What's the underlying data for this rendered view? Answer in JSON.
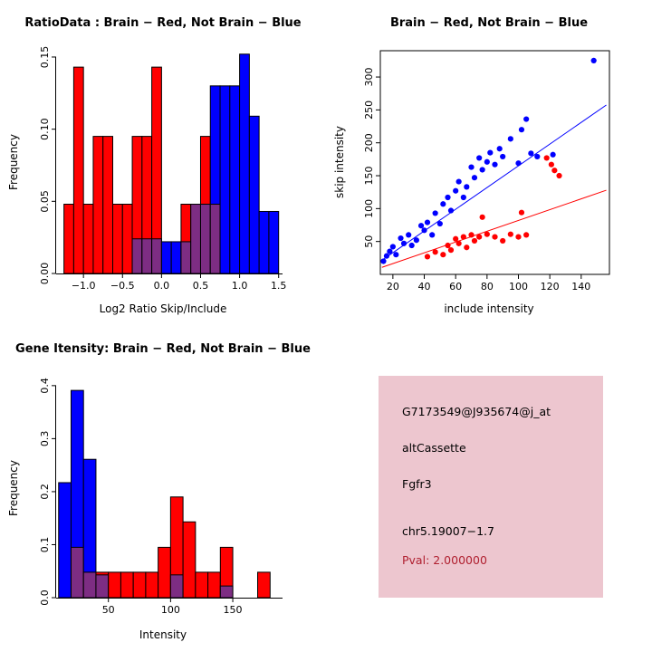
{
  "window": {
    "background": "#ffffff"
  },
  "colors": {
    "red": "#ff0000",
    "blue": "#0000ff",
    "overlap": "#7d2d83",
    "axis": "#000000"
  },
  "panels": {
    "ratio_hist": {
      "title": "RatioData : Brain − Red, Not Brain − Blue",
      "xlabel": "Log2 Ratio Skip/Include",
      "ylabel": "Frequency"
    },
    "scatter": {
      "title": "Brain − Red, Not Brain − Blue",
      "xlabel": "include intensity",
      "ylabel": "skip intensity"
    },
    "gene_hist": {
      "title": "Gene Itensity: Brain − Red, Not Brain − Blue",
      "xlabel": "Intensity",
      "ylabel": "Frequency"
    },
    "info_box": {
      "bg_color": "#edc6cf",
      "probe_id": "G7173549@J935674@j_at",
      "event_type": "altCassette",
      "gene": "Fgfr3",
      "locus": "chr5.19007−1.7",
      "pval": "Pval: 2.000000",
      "pval_color": "#b02030"
    }
  },
  "chart_data": [
    {
      "id": "ratio_hist",
      "type": "bar",
      "title": "RatioData : Brain − Red, Not Brain − Blue",
      "xlabel": "Log2 Ratio Skip/Include",
      "ylabel": "Frequency",
      "xlim": [
        -1.35,
        1.55
      ],
      "ylim": [
        0,
        0.155
      ],
      "xticks": [
        -1.0,
        -0.5,
        0.0,
        0.5,
        1.0,
        1.5
      ],
      "xtick_labels": [
        "−1.0",
        "−0.5",
        "0.0",
        "0.5",
        "1.0",
        "1.5"
      ],
      "yticks": [
        0,
        0.05,
        0.1,
        0.15
      ],
      "ytick_labels": [
        "0.00",
        "0.05",
        "0.10",
        "0.15"
      ],
      "grid": false,
      "legend": "none",
      "bin_start": -1.25,
      "bin_width": 0.125,
      "series": [
        {
          "name": "Brain",
          "color": "red",
          "values": [
            0.048,
            0.143,
            0.048,
            0.095,
            0.095,
            0.048,
            0.048,
            0.095,
            0.095,
            0.143,
            0,
            0,
            0.048,
            0.048,
            0.095,
            0.048,
            0,
            0,
            0,
            0,
            0,
            0
          ]
        },
        {
          "name": "Not Brain",
          "color": "blue",
          "values": [
            0,
            0,
            0,
            0,
            0,
            0,
            0,
            0.024,
            0.024,
            0.024,
            0.022,
            0.022,
            0.022,
            0.048,
            0.048,
            0.13,
            0.13,
            0.13,
            0.152,
            0.109,
            0.043,
            0.043
          ]
        }
      ]
    },
    {
      "id": "scatter",
      "type": "scatter",
      "title": "Brain − Red, Not Brain − Blue",
      "xlabel": "include intensity",
      "ylabel": "skip intensity",
      "xlim": [
        12,
        158
      ],
      "ylim": [
        0,
        340
      ],
      "xticks": [
        20,
        40,
        60,
        80,
        100,
        120,
        140
      ],
      "xtick_labels": [
        "20",
        "40",
        "60",
        "80",
        "100",
        "120",
        "140"
      ],
      "yticks": [
        50,
        100,
        150,
        200,
        250,
        300
      ],
      "ytick_labels": [
        "50",
        "100",
        "150",
        "200",
        "250",
        "300"
      ],
      "grid": false,
      "legend": "none",
      "line_x": [
        13,
        156
      ],
      "series": [
        {
          "name": "Not Brain",
          "color": "blue",
          "line": {
            "slope": 1.65,
            "intercept": 0
          },
          "points": [
            [
              14,
              20
            ],
            [
              16,
              28
            ],
            [
              18,
              35
            ],
            [
              20,
              42
            ],
            [
              22,
              30
            ],
            [
              25,
              55
            ],
            [
              27,
              47
            ],
            [
              30,
              60
            ],
            [
              32,
              44
            ],
            [
              35,
              52
            ],
            [
              38,
              74
            ],
            [
              40,
              67
            ],
            [
              42,
              79
            ],
            [
              45,
              60
            ],
            [
              47,
              93
            ],
            [
              50,
              77
            ],
            [
              52,
              107
            ],
            [
              55,
              117
            ],
            [
              57,
              97
            ],
            [
              60,
              127
            ],
            [
              62,
              141
            ],
            [
              65,
              117
            ],
            [
              67,
              133
            ],
            [
              70,
              163
            ],
            [
              72,
              147
            ],
            [
              75,
              177
            ],
            [
              77,
              159
            ],
            [
              80,
              171
            ],
            [
              82,
              185
            ],
            [
              85,
              167
            ],
            [
              88,
              191
            ],
            [
              90,
              179
            ],
            [
              95,
              206
            ],
            [
              100,
              169
            ],
            [
              102,
              220
            ],
            [
              105,
              236
            ],
            [
              108,
              184
            ],
            [
              112,
              179
            ],
            [
              122,
              182
            ],
            [
              148,
              325
            ]
          ]
        },
        {
          "name": "Brain",
          "color": "red",
          "line": {
            "slope": 0.82,
            "intercept": 0
          },
          "points": [
            [
              42,
              27
            ],
            [
              47,
              34
            ],
            [
              52,
              30
            ],
            [
              55,
              44
            ],
            [
              57,
              37
            ],
            [
              60,
              54
            ],
            [
              62,
              47
            ],
            [
              65,
              57
            ],
            [
              67,
              41
            ],
            [
              70,
              60
            ],
            [
              72,
              51
            ],
            [
              75,
              57
            ],
            [
              77,
              87
            ],
            [
              80,
              61
            ],
            [
              85,
              57
            ],
            [
              90,
              51
            ],
            [
              95,
              61
            ],
            [
              100,
              57
            ],
            [
              102,
              94
            ],
            [
              105,
              60
            ],
            [
              118,
              177
            ],
            [
              121,
              167
            ],
            [
              123,
              158
            ],
            [
              126,
              150
            ]
          ]
        }
      ]
    },
    {
      "id": "gene_hist",
      "type": "bar",
      "title": "Gene Itensity: Brain − Red, Not Brain − Blue",
      "xlabel": "Intensity",
      "ylabel": "Frequency",
      "xlim": [
        8,
        190
      ],
      "ylim": [
        0,
        0.41
      ],
      "xticks": [
        50,
        100,
        150
      ],
      "xtick_labels": [
        "50",
        "100",
        "150"
      ],
      "yticks": [
        0,
        0.1,
        0.2,
        0.3,
        0.4
      ],
      "ytick_labels": [
        "0.0",
        "0.1",
        "0.2",
        "0.3",
        "0.4"
      ],
      "grid": false,
      "legend": "none",
      "bin_start": 10,
      "bin_width": 10,
      "series": [
        {
          "name": "Brain",
          "color": "red",
          "values": [
            0,
            0.095,
            0.048,
            0.048,
            0.048,
            0.048,
            0.048,
            0.048,
            0.095,
            0.19,
            0.143,
            0.048,
            0.048,
            0.095,
            0,
            0,
            0.048
          ]
        },
        {
          "name": "Not Brain",
          "color": "blue",
          "values": [
            0.217,
            0.391,
            0.261,
            0.043,
            0,
            0,
            0,
            0,
            0,
            0.043,
            0,
            0,
            0,
            0.022,
            0,
            0,
            0
          ]
        }
      ]
    }
  ]
}
